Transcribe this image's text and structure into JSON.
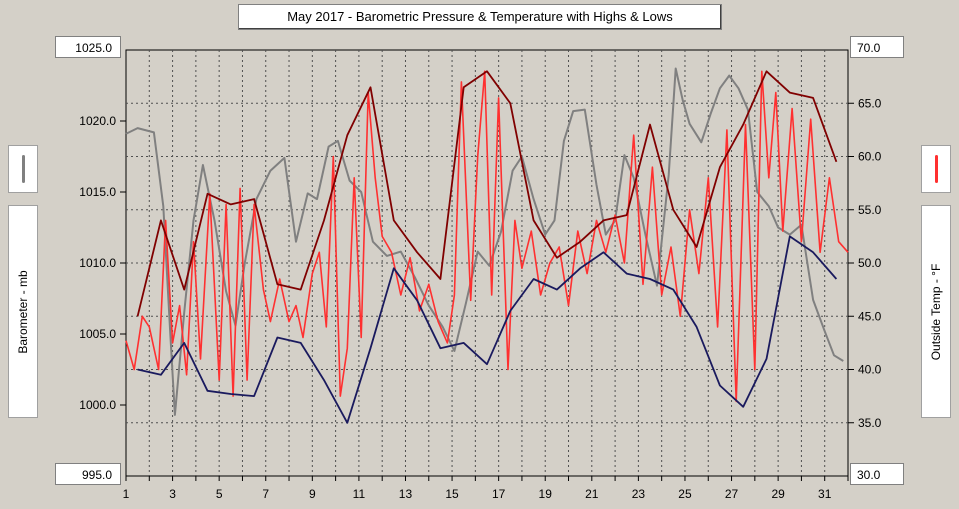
{
  "title": "May 2017 - Barometric Pressure & Temperature with Highs & Lows",
  "left_axis": {
    "label": "Barometer - mb",
    "top_value": "1025.0",
    "bottom_value": "995.0"
  },
  "right_axis": {
    "label": "Outside Temp - °F",
    "top_value": "70.0",
    "bottom_value": "30.0"
  },
  "colors": {
    "background": "#d4d0c8",
    "barometer": "#808080",
    "temperature": "#ff3030",
    "temp_high": "#800000",
    "temp_low": "#1a1a5e",
    "grid": "#505050"
  },
  "chart_data": {
    "type": "line",
    "title": "May 2017 - Barometric Pressure & Temperature with Highs & Lows",
    "xlabel": "",
    "x_range": [
      1,
      32
    ],
    "x_ticks": [
      1,
      3,
      5,
      7,
      9,
      11,
      13,
      15,
      17,
      19,
      21,
      23,
      25,
      27,
      29,
      31
    ],
    "y_left": {
      "label": "Barometer - mb",
      "range": [
        995,
        1025
      ],
      "ticks": [
        "995.0",
        "1000.0",
        "1005.0",
        "1010.0",
        "1015.0",
        "1020.0",
        "1025.0"
      ]
    },
    "y_right": {
      "label": "Outside Temp - °F",
      "range": [
        30,
        70
      ],
      "ticks": [
        "30.0",
        "35.0",
        "40.0",
        "45.0",
        "50.0",
        "55.0",
        "60.0",
        "65.0",
        "70.0"
      ]
    },
    "grid": true,
    "series": [
      {
        "name": "Barometer",
        "axis": "left",
        "x": [
          1,
          1.5,
          2.2,
          2.6,
          2.9,
          3.1,
          3.5,
          3.9,
          4.3,
          4.8,
          5.3,
          5.7,
          6.1,
          6.6,
          7.2,
          7.8,
          8.3,
          8.8,
          9.2,
          9.7,
          10.1,
          10.6,
          11.1,
          11.6,
          12.2,
          12.8,
          13.4,
          14.0,
          14.6,
          15.1,
          15.6,
          16.1,
          16.6,
          17.1,
          17.6,
          18.0,
          18.5,
          19.0,
          19.4,
          19.8,
          20.2,
          20.7,
          21.2,
          21.6,
          22.0,
          22.4,
          22.8,
          23.3,
          23.8,
          24.3,
          24.6,
          24.9,
          25.2,
          25.7,
          26.1,
          26.5,
          26.9,
          27.3,
          27.7,
          28.1,
          28.6,
          29.0,
          29.5,
          30.0,
          30.5,
          31.0,
          31.4,
          31.8
        ],
        "y": [
          1019.1,
          1019.5,
          1019.2,
          1014.0,
          1005.0,
          999.3,
          1006.5,
          1013.0,
          1016.9,
          1013.0,
          1008.0,
          1005.6,
          1010.0,
          1014.5,
          1016.5,
          1017.4,
          1011.5,
          1014.9,
          1014.5,
          1018.2,
          1018.6,
          1015.8,
          1015.0,
          1011.5,
          1010.5,
          1010.8,
          1009.0,
          1007.0,
          1005.5,
          1003.8,
          1007.2,
          1010.8,
          1009.8,
          1012.2,
          1016.5,
          1017.5,
          1014.5,
          1012.0,
          1013.0,
          1018.6,
          1020.7,
          1020.8,
          1015.5,
          1012.0,
          1013.0,
          1017.6,
          1016.0,
          1012.0,
          1008.4,
          1016.2,
          1023.7,
          1021.5,
          1019.8,
          1018.5,
          1020.5,
          1022.3,
          1023.2,
          1022.3,
          1020.8,
          1015.0,
          1014.0,
          1012.5,
          1012.0,
          1012.7,
          1007.4,
          1005.2,
          1003.5,
          1003.1
        ]
      },
      {
        "name": "Outside Temp",
        "axis": "right",
        "x": [
          1,
          1.35,
          1.7,
          2.0,
          2.4,
          2.7,
          3.0,
          3.3,
          3.6,
          3.9,
          4.2,
          4.6,
          5.0,
          5.3,
          5.6,
          5.9,
          6.2,
          6.5,
          6.9,
          7.2,
          7.6,
          8.0,
          8.3,
          8.6,
          9.0,
          9.3,
          9.6,
          9.9,
          10.2,
          10.5,
          10.8,
          11.1,
          11.4,
          11.7,
          12.0,
          12.4,
          12.8,
          13.2,
          13.6,
          14.0,
          14.4,
          14.8,
          15.1,
          15.4,
          15.8,
          16.1,
          16.4,
          16.7,
          17.0,
          17.4,
          17.7,
          18.0,
          18.4,
          18.8,
          19.2,
          19.6,
          20.0,
          20.4,
          20.8,
          21.2,
          21.6,
          22.0,
          22.4,
          22.8,
          23.2,
          23.6,
          24.0,
          24.4,
          24.8,
          25.2,
          25.6,
          26.0,
          26.4,
          26.8,
          27.2,
          27.6,
          28.0,
          28.3,
          28.6,
          28.9,
          29.2,
          29.6,
          30.0,
          30.4,
          30.8,
          31.2,
          31.6,
          32.0
        ],
        "y": [
          42.7,
          40.0,
          45.0,
          44.0,
          40.0,
          54.0,
          42.5,
          46.0,
          39.5,
          52.0,
          41.0,
          56.5,
          39.0,
          55.5,
          37.5,
          57.0,
          39.0,
          55.5,
          47.5,
          44.5,
          48.5,
          44.5,
          46.0,
          43.0,
          49.0,
          51.0,
          44.0,
          60.0,
          37.5,
          42.0,
          58.0,
          43.0,
          66.0,
          58.0,
          52.5,
          51.0,
          47.0,
          50.5,
          45.5,
          48.0,
          44.5,
          42.5,
          47.0,
          67.0,
          46.5,
          60.0,
          68.0,
          47.0,
          65.5,
          40.0,
          54.0,
          49.5,
          53.0,
          47.0,
          50.0,
          51.5,
          46.0,
          53.0,
          49.0,
          54.0,
          51.0,
          54.5,
          50.0,
          62.0,
          48.0,
          59.0,
          47.0,
          51.5,
          45.0,
          55.0,
          49.0,
          58.0,
          44.0,
          62.5,
          37.0,
          63.0,
          40.0,
          68.0,
          58.0,
          66.0,
          53.0,
          64.5,
          52.0,
          63.5,
          51.0,
          58.0,
          52.0,
          51.0
        ]
      },
      {
        "name": "Temp Highs",
        "axis": "right",
        "x": [
          1.5,
          2.5,
          3.5,
          4.5,
          5.5,
          6.5,
          7.5,
          8.5,
          9.5,
          10.5,
          11.5,
          12.5,
          13.5,
          14.5,
          15.5,
          16.5,
          17.5,
          18.5,
          19.5,
          20.5,
          21.5,
          22.5,
          23.5,
          24.5,
          25.5,
          26.5,
          27.5,
          28.5,
          29.5,
          30.5,
          31.5
        ],
        "y": [
          45.0,
          54.0,
          47.5,
          56.5,
          55.5,
          56.0,
          48.0,
          47.5,
          54.0,
          62.0,
          66.5,
          54.0,
          51.0,
          48.5,
          66.5,
          68.0,
          65.0,
          54.0,
          50.5,
          52.0,
          54.0,
          54.5,
          63.0,
          55.0,
          51.5,
          59.0,
          63.0,
          68.0,
          66.0,
          65.5,
          59.5
        ]
      },
      {
        "name": "Temp Lows",
        "axis": "right",
        "x": [
          1.5,
          2.5,
          3.5,
          4.5,
          5.5,
          6.5,
          7.5,
          8.5,
          9.5,
          10.5,
          11.5,
          12.5,
          13.5,
          14.5,
          15.5,
          16.5,
          17.5,
          18.5,
          19.5,
          20.5,
          21.5,
          22.5,
          23.5,
          24.5,
          25.5,
          26.5,
          27.5,
          28.5,
          29.5,
          30.5,
          31.5
        ],
        "y": [
          40.0,
          39.5,
          42.5,
          38.0,
          37.7,
          37.5,
          43.0,
          42.5,
          39.0,
          35.0,
          42.0,
          49.5,
          46.5,
          42.0,
          42.5,
          40.5,
          45.5,
          48.5,
          47.5,
          49.5,
          51.0,
          49.0,
          48.5,
          47.5,
          44.0,
          38.5,
          36.5,
          41.0,
          52.5,
          51.0,
          48.5
        ]
      }
    ]
  }
}
